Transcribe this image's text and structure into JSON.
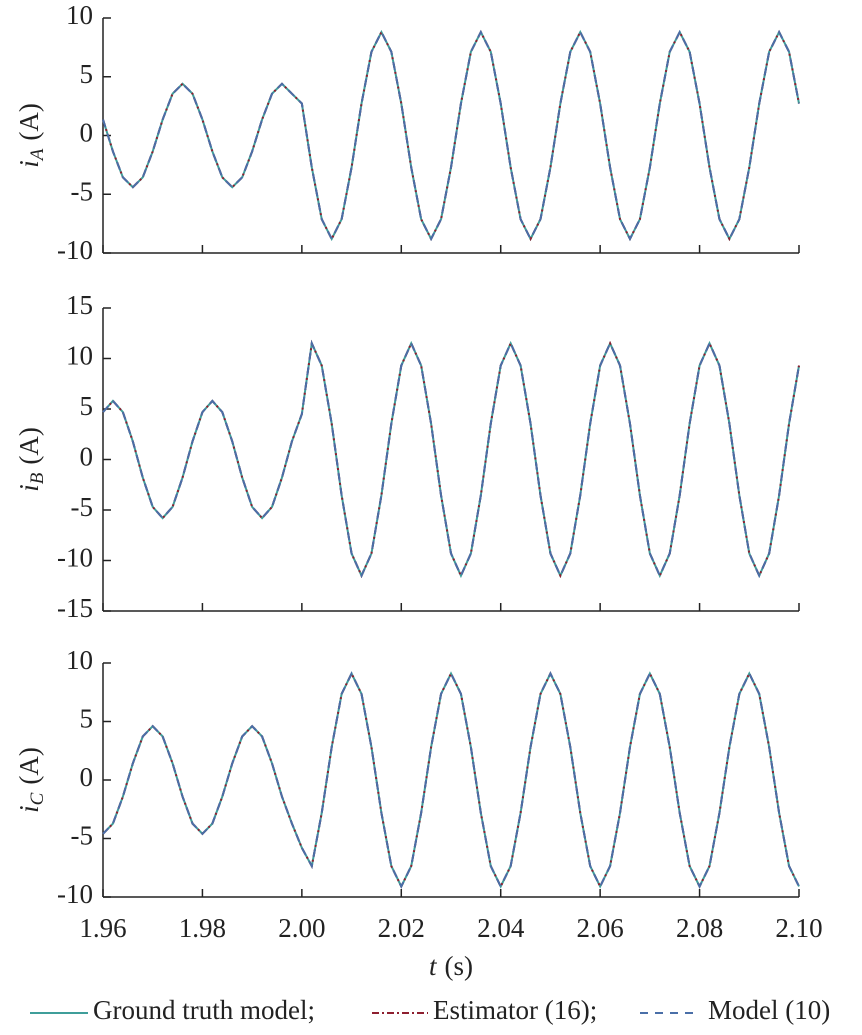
{
  "chart_data": [
    {
      "type": "line",
      "ylabel_symbol": "i",
      "ylabel_subscript": "A",
      "ylabel_unit": "(A)",
      "x": [
        1.96,
        1.962,
        1.964,
        1.966,
        1.968,
        1.97,
        1.972,
        1.974,
        1.976,
        1.978,
        1.98,
        1.982,
        1.984,
        1.986,
        1.988,
        1.99,
        1.992,
        1.994,
        1.996,
        1.998,
        2,
        2.002,
        2.004,
        2.006,
        2.008,
        2.01,
        2.012,
        2.014,
        2.016,
        2.018,
        2.02,
        2.022,
        2.024,
        2.026,
        2.028,
        2.03,
        2.032,
        2.034,
        2.036,
        2.038,
        2.04,
        2.042,
        2.044,
        2.046,
        2.048,
        2.05,
        2.052,
        2.054,
        2.056,
        2.058,
        2.06,
        2.062,
        2.064,
        2.066,
        2.068,
        2.07,
        2.072,
        2.074,
        2.076,
        2.078,
        2.08,
        2.082,
        2.084,
        2.086,
        2.088,
        2.09,
        2.092,
        2.094,
        2.096,
        2.098,
        2.1
      ],
      "xlim": [
        1.96,
        2.1
      ],
      "xticks": [
        1.96,
        1.98,
        {
          "value": 2,
          "label": "2.00"
        },
        2.02,
        2.04,
        2.06,
        2.08,
        {
          "value": 2.1,
          "label": "2.10"
        }
      ],
      "ylim": [
        -10,
        10
      ],
      "yticks": [
        -10,
        -5,
        0,
        5,
        10
      ],
      "series": [
        {
          "name": "Ground truth model;",
          "color": "#3f9e9a",
          "dash": "none",
          "values": [
            1.36,
            -1.36,
            -3.56,
            -4.4,
            -3.56,
            -1.36,
            1.36,
            3.56,
            4.4,
            3.56,
            1.36,
            -1.36,
            -3.56,
            -4.4,
            -3.56,
            -1.36,
            1.36,
            3.56,
            4.4,
            3.56,
            2.72,
            -2.72,
            -7.12,
            -8.8,
            -7.12,
            -2.72,
            2.72,
            7.12,
            8.8,
            7.12,
            2.72,
            -2.72,
            -7.12,
            -8.8,
            -7.12,
            -2.72,
            2.72,
            7.12,
            8.8,
            7.12,
            2.72,
            -2.72,
            -7.12,
            -8.8,
            -7.12,
            -2.72,
            2.72,
            7.12,
            8.8,
            7.12,
            2.72,
            -2.72,
            -7.12,
            -8.8,
            -7.12,
            -2.72,
            2.72,
            7.12,
            8.8,
            7.12,
            2.72,
            -2.72,
            -7.12,
            -8.8,
            -7.12,
            -2.72,
            2.72,
            7.12,
            8.8,
            7.12,
            2.72
          ]
        },
        {
          "name": "Estimator (16);",
          "color": "#8e1f2f",
          "dash": "7,3,2,3",
          "values": [
            1.36,
            -1.36,
            -3.56,
            -4.4,
            -3.56,
            -1.36,
            1.36,
            3.56,
            4.4,
            3.56,
            1.36,
            -1.36,
            -3.56,
            -4.4,
            -3.56,
            -1.36,
            1.36,
            3.56,
            4.4,
            3.56,
            2.72,
            -2.72,
            -7.12,
            -8.8,
            -7.12,
            -2.72,
            2.72,
            7.12,
            8.8,
            7.12,
            2.72,
            -2.72,
            -7.12,
            -8.8,
            -7.12,
            -2.72,
            2.72,
            7.12,
            8.8,
            7.12,
            2.72,
            -2.72,
            -7.12,
            -8.8,
            -7.12,
            -2.72,
            2.72,
            7.12,
            8.8,
            7.12,
            2.72,
            -2.72,
            -7.12,
            -8.8,
            -7.12,
            -2.72,
            2.72,
            7.12,
            8.8,
            7.12,
            2.72,
            -2.72,
            -7.12,
            -8.8,
            -7.12,
            -2.72,
            2.72,
            7.12,
            8.8,
            7.12,
            2.72
          ]
        },
        {
          "name": "Model (10)",
          "color": "#4a6fa8",
          "dash": "8,7",
          "values": [
            1.36,
            -1.36,
            -3.56,
            -4.4,
            -3.56,
            -1.36,
            1.36,
            3.56,
            4.4,
            3.56,
            1.36,
            -1.36,
            -3.56,
            -4.4,
            -3.56,
            -1.36,
            1.36,
            3.56,
            4.4,
            3.56,
            2.72,
            -2.72,
            -7.12,
            -8.8,
            -7.12,
            -2.72,
            2.72,
            7.12,
            8.8,
            7.12,
            2.72,
            -2.72,
            -7.12,
            -8.8,
            -7.12,
            -2.72,
            2.72,
            7.12,
            8.8,
            7.12,
            2.72,
            -2.72,
            -7.12,
            -8.8,
            -7.12,
            -2.72,
            2.72,
            7.12,
            8.8,
            7.12,
            2.72,
            -2.72,
            -7.12,
            -8.8,
            -7.12,
            -2.72,
            2.72,
            7.12,
            8.8,
            7.12,
            2.72,
            -2.72,
            -7.12,
            -8.8,
            -7.12,
            -2.72,
            2.72,
            7.12,
            8.8,
            7.12,
            2.72
          ]
        }
      ]
    },
    {
      "type": "line",
      "ylabel_symbol": "i",
      "ylabel_subscript": "B",
      "ylabel_unit": "(A)",
      "x": [
        1.96,
        1.962,
        1.964,
        1.966,
        1.968,
        1.97,
        1.972,
        1.974,
        1.976,
        1.978,
        1.98,
        1.982,
        1.984,
        1.986,
        1.988,
        1.99,
        1.992,
        1.994,
        1.996,
        1.998,
        2,
        2.002,
        2.004,
        2.006,
        2.008,
        2.01,
        2.012,
        2.014,
        2.016,
        2.018,
        2.02,
        2.022,
        2.024,
        2.026,
        2.028,
        2.03,
        2.032,
        2.034,
        2.036,
        2.038,
        2.04,
        2.042,
        2.044,
        2.046,
        2.048,
        2.05,
        2.052,
        2.054,
        2.056,
        2.058,
        2.06,
        2.062,
        2.064,
        2.066,
        2.068,
        2.07,
        2.072,
        2.074,
        2.076,
        2.078,
        2.08,
        2.082,
        2.084,
        2.086,
        2.088,
        2.09,
        2.092,
        2.094,
        2.096,
        2.098,
        2.1
      ],
      "xlim": [
        1.96,
        2.1
      ],
      "xticks": [
        1.96,
        1.98,
        {
          "value": 2,
          "label": "2.00"
        },
        2.02,
        2.04,
        2.06,
        2.08,
        {
          "value": 2.1,
          "label": "2.10"
        }
      ],
      "ylim": [
        -15,
        15
      ],
      "yticks": [
        -15,
        -10,
        -5,
        0,
        5,
        10,
        15
      ],
      "series": [
        {
          "name": "Ground truth model;",
          "color": "#3f9e9a",
          "dash": "none",
          "values": [
            4.69,
            5.8,
            4.69,
            1.79,
            -1.79,
            -4.69,
            -5.8,
            -4.69,
            -1.79,
            1.79,
            4.69,
            5.8,
            4.69,
            1.79,
            -1.79,
            -4.69,
            -5.8,
            -4.69,
            -1.79,
            1.79,
            4.5,
            11.5,
            9.3,
            3.55,
            -3.55,
            -9.3,
            -11.5,
            -9.3,
            -3.55,
            3.55,
            9.3,
            11.5,
            9.3,
            3.55,
            -3.55,
            -9.3,
            -11.5,
            -9.3,
            -3.55,
            3.55,
            9.3,
            11.5,
            9.3,
            3.55,
            -3.55,
            -9.3,
            -11.5,
            -9.3,
            -3.55,
            3.55,
            9.3,
            11.5,
            9.3,
            3.55,
            -3.55,
            -9.3,
            -11.5,
            -9.3,
            -3.55,
            3.55,
            9.3,
            11.5,
            9.3,
            3.55,
            -3.55,
            -9.3,
            -11.5,
            -9.3,
            -3.55,
            3.55,
            9.3
          ]
        },
        {
          "name": "Estimator (16);",
          "color": "#8e1f2f",
          "dash": "7,3,2,3",
          "values": [
            4.69,
            5.8,
            4.69,
            1.79,
            -1.79,
            -4.69,
            -5.8,
            -4.69,
            -1.79,
            1.79,
            4.69,
            5.8,
            4.69,
            1.79,
            -1.79,
            -4.69,
            -5.8,
            -4.69,
            -1.79,
            1.79,
            4.5,
            11.5,
            9.3,
            3.55,
            -3.55,
            -9.3,
            -11.5,
            -9.3,
            -3.55,
            3.55,
            9.3,
            11.5,
            9.3,
            3.55,
            -3.55,
            -9.3,
            -11.5,
            -9.3,
            -3.55,
            3.55,
            9.3,
            11.5,
            9.3,
            3.55,
            -3.55,
            -9.3,
            -11.5,
            -9.3,
            -3.55,
            3.55,
            9.3,
            11.5,
            9.3,
            3.55,
            -3.55,
            -9.3,
            -11.5,
            -9.3,
            -3.55,
            3.55,
            9.3,
            11.5,
            9.3,
            3.55,
            -3.55,
            -9.3,
            -11.5,
            -9.3,
            -3.55,
            3.55,
            9.3
          ]
        },
        {
          "name": "Model (10)",
          "color": "#4a6fa8",
          "dash": "8,7",
          "values": [
            4.69,
            5.8,
            4.69,
            1.79,
            -1.79,
            -4.69,
            -5.8,
            -4.69,
            -1.79,
            1.79,
            4.69,
            5.8,
            4.69,
            1.79,
            -1.79,
            -4.69,
            -5.8,
            -4.69,
            -1.79,
            1.79,
            4.5,
            11.5,
            9.3,
            3.55,
            -3.55,
            -9.3,
            -11.5,
            -9.3,
            -3.55,
            3.55,
            9.3,
            11.5,
            9.3,
            3.55,
            -3.55,
            -9.3,
            -11.5,
            -9.3,
            -3.55,
            3.55,
            9.3,
            11.5,
            9.3,
            3.55,
            -3.55,
            -9.3,
            -11.5,
            -9.3,
            -3.55,
            3.55,
            9.3,
            11.5,
            9.3,
            3.55,
            -3.55,
            -9.3,
            -11.5,
            -9.3,
            -3.55,
            3.55,
            9.3,
            11.5,
            9.3,
            3.55,
            -3.55,
            -9.3,
            -11.5,
            -9.3,
            -3.55,
            3.55,
            9.3
          ]
        }
      ]
    },
    {
      "type": "line",
      "ylabel_symbol": "i",
      "ylabel_subscript": "C",
      "ylabel_unit": "(A)",
      "xlabel_symbol": "t",
      "xlabel_unit": "(s)",
      "x": [
        1.96,
        1.962,
        1.964,
        1.966,
        1.968,
        1.97,
        1.972,
        1.974,
        1.976,
        1.978,
        1.98,
        1.982,
        1.984,
        1.986,
        1.988,
        1.99,
        1.992,
        1.994,
        1.996,
        1.998,
        2,
        2.002,
        2.004,
        2.006,
        2.008,
        2.01,
        2.012,
        2.014,
        2.016,
        2.018,
        2.02,
        2.022,
        2.024,
        2.026,
        2.028,
        2.03,
        2.032,
        2.034,
        2.036,
        2.038,
        2.04,
        2.042,
        2.044,
        2.046,
        2.048,
        2.05,
        2.052,
        2.054,
        2.056,
        2.058,
        2.06,
        2.062,
        2.064,
        2.066,
        2.068,
        2.07,
        2.072,
        2.074,
        2.076,
        2.078,
        2.08,
        2.082,
        2.084,
        2.086,
        2.088,
        2.09,
        2.092,
        2.094,
        2.096,
        2.098,
        2.1
      ],
      "xlim": [
        1.96,
        2.1
      ],
      "xticks": [
        1.96,
        1.98,
        {
          "value": 2,
          "label": "2.00"
        },
        2.02,
        2.04,
        2.06,
        2.08,
        {
          "value": 2.1,
          "label": "2.10"
        }
      ],
      "ylim": [
        -10,
        10
      ],
      "yticks": [
        -10,
        -5,
        0,
        5,
        10
      ],
      "series": [
        {
          "name": "Ground truth model;",
          "color": "#3f9e9a",
          "dash": "none",
          "values": [
            -4.6,
            -3.72,
            -1.42,
            1.42,
            3.72,
            4.6,
            3.72,
            1.42,
            -1.42,
            -3.72,
            -4.6,
            -3.72,
            -1.42,
            1.42,
            3.72,
            4.6,
            3.72,
            1.42,
            -1.42,
            -3.72,
            -5.8,
            -7.36,
            -2.81,
            2.81,
            7.36,
            9.1,
            7.36,
            2.81,
            -2.81,
            -7.36,
            -9.1,
            -7.36,
            -2.81,
            2.81,
            7.36,
            9.1,
            7.36,
            2.81,
            -2.81,
            -7.36,
            -9.1,
            -7.36,
            -2.81,
            2.81,
            7.36,
            9.1,
            7.36,
            2.81,
            -2.81,
            -7.36,
            -9.1,
            -7.36,
            -2.81,
            2.81,
            7.36,
            9.1,
            7.36,
            2.81,
            -2.81,
            -7.36,
            -9.1,
            -7.36,
            -2.81,
            2.81,
            7.36,
            9.1,
            7.36,
            2.81,
            -2.81,
            -7.36,
            -9.1
          ]
        },
        {
          "name": "Estimator (16);",
          "color": "#8e1f2f",
          "dash": "7,3,2,3",
          "values": [
            -4.6,
            -3.72,
            -1.42,
            1.42,
            3.72,
            4.6,
            3.72,
            1.42,
            -1.42,
            -3.72,
            -4.6,
            -3.72,
            -1.42,
            1.42,
            3.72,
            4.6,
            3.72,
            1.42,
            -1.42,
            -3.72,
            -5.8,
            -7.36,
            -2.81,
            2.81,
            7.36,
            9.1,
            7.36,
            2.81,
            -2.81,
            -7.36,
            -9.1,
            -7.36,
            -2.81,
            2.81,
            7.36,
            9.1,
            7.36,
            2.81,
            -2.81,
            -7.36,
            -9.1,
            -7.36,
            -2.81,
            2.81,
            7.36,
            9.1,
            7.36,
            2.81,
            -2.81,
            -7.36,
            -9.1,
            -7.36,
            -2.81,
            2.81,
            7.36,
            9.1,
            7.36,
            2.81,
            -2.81,
            -7.36,
            -9.1,
            -7.36,
            -2.81,
            2.81,
            7.36,
            9.1,
            7.36,
            2.81,
            -2.81,
            -7.36,
            -9.1
          ]
        },
        {
          "name": "Model (10)",
          "color": "#4a6fa8",
          "dash": "8,7",
          "values": [
            -4.6,
            -3.72,
            -1.42,
            1.42,
            3.72,
            4.6,
            3.72,
            1.42,
            -1.42,
            -3.72,
            -4.6,
            -3.72,
            -1.42,
            1.42,
            3.72,
            4.6,
            3.72,
            1.42,
            -1.42,
            -3.72,
            -5.8,
            -7.36,
            -2.81,
            2.81,
            7.36,
            9.1,
            7.36,
            2.81,
            -2.81,
            -7.36,
            -9.1,
            -7.36,
            -2.81,
            2.81,
            7.36,
            9.1,
            7.36,
            2.81,
            -2.81,
            -7.36,
            -9.1,
            -7.36,
            -2.81,
            2.81,
            7.36,
            9.1,
            7.36,
            2.81,
            -2.81,
            -7.36,
            -9.1,
            -7.36,
            -2.81,
            2.81,
            7.36,
            9.1,
            7.36,
            2.81,
            -2.81,
            -7.36,
            -9.1,
            -7.36,
            -2.81,
            2.81,
            7.36,
            9.1,
            7.36,
            2.81,
            -2.81,
            -7.36,
            -9.1
          ]
        }
      ]
    }
  ]
}
